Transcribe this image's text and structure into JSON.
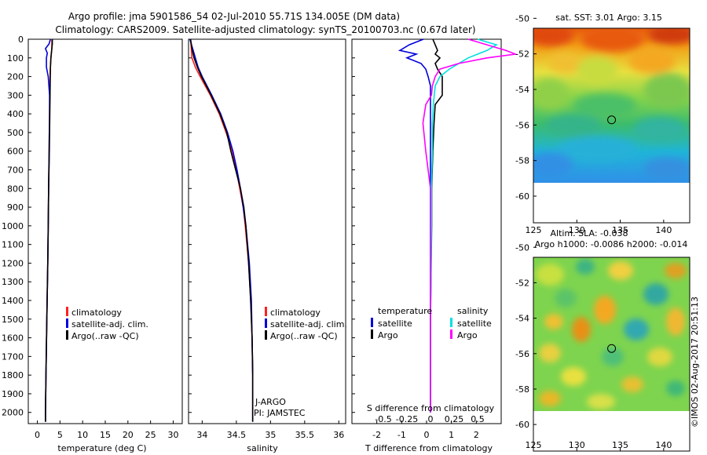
{
  "title": {
    "line1": "Argo profile: jma 5901586_54 02-Jul-2010 55.71S 134.005E (DM data)",
    "line2": "Climatology: CARS2009. Satellite-adjusted climatology: synTS_20100703.nc (0.67d later)"
  },
  "credit": "©IMOS 02-Aug-2017 20:51:13",
  "colors": {
    "climatology": "#ff2020",
    "satellite": "#0000dd",
    "argo": "#000000",
    "salinity_sat": "#00e0e0",
    "salinity_argo": "#ff00ff"
  },
  "depth_axis": {
    "ticks": [
      0,
      100,
      200,
      300,
      400,
      500,
      600,
      700,
      800,
      900,
      1000,
      1100,
      1200,
      1300,
      1400,
      1500,
      1600,
      1700,
      1800,
      1900,
      2000
    ],
    "max": 2060
  },
  "legend_profiles": {
    "climatology": "climatology",
    "satellite": "satellite-adj. clim.",
    "argo": "Argo(..raw -QC)"
  },
  "legend_diff": {
    "temperature": "temperature",
    "salinity": "salinity",
    "satellite": "satellite",
    "argo": "Argo"
  },
  "annotation": {
    "line1": "J-ARGO",
    "line2": "PI: JAMSTEC"
  },
  "chart_data": [
    {
      "type": "line",
      "name": "temperature-profile",
      "xlabel": "temperature (deg C)",
      "xlim": [
        -2,
        32
      ],
      "ylim": [
        0,
        2060
      ],
      "xticks": [
        "0",
        "5",
        "10",
        "15",
        "20",
        "25",
        "30"
      ],
      "xtick_values": [
        0,
        5,
        10,
        15,
        20,
        25,
        30
      ],
      "depth": [
        0,
        25,
        50,
        75,
        100,
        150,
        200,
        300,
        400,
        600,
        800,
        1000,
        1200,
        1500,
        1800,
        2000,
        2050
      ],
      "series": [
        {
          "name": "climatology",
          "values": [
            3.2,
            3.2,
            3.2,
            3.1,
            3.0,
            2.9,
            2.8,
            2.75,
            2.7,
            2.6,
            2.5,
            2.4,
            2.3,
            2.1,
            1.9,
            1.8,
            1.8
          ]
        },
        {
          "name": "satellite-adj. clim.",
          "values": [
            2.9,
            2.6,
            1.8,
            2.2,
            2.0,
            2.0,
            2.4,
            2.7,
            2.7,
            2.6,
            2.5,
            2.4,
            2.3,
            2.1,
            1.9,
            1.8,
            1.8
          ]
        },
        {
          "name": "Argo",
          "values": [
            3.3,
            3.3,
            3.2,
            3.1,
            3.0,
            2.9,
            2.85,
            2.8,
            2.75,
            2.65,
            2.5,
            2.4,
            2.3,
            2.1,
            1.9,
            1.8,
            1.8
          ]
        }
      ]
    },
    {
      "type": "line",
      "name": "salinity-profile",
      "xlabel": "salinity",
      "xlim": [
        33.8,
        36.1
      ],
      "ylim": [
        0,
        2060
      ],
      "xticks": [
        "34",
        "34.5",
        "35",
        "35.5",
        "36"
      ],
      "xtick_values": [
        34,
        34.5,
        35,
        35.5,
        36
      ],
      "depth": [
        0,
        50,
        100,
        150,
        200,
        300,
        400,
        500,
        600,
        700,
        800,
        900,
        1000,
        1200,
        1400,
        1600,
        1800,
        2000,
        2050
      ],
      "series": [
        {
          "name": "climatology",
          "values": [
            33.83,
            33.84,
            33.85,
            33.9,
            33.97,
            34.12,
            34.25,
            34.35,
            34.44,
            34.5,
            34.55,
            34.6,
            34.63,
            34.68,
            34.71,
            34.73,
            34.74,
            34.74,
            34.74
          ]
        },
        {
          "name": "satellite-adj. clim.",
          "values": [
            33.82,
            33.86,
            33.9,
            33.94,
            34.0,
            34.14,
            34.27,
            34.37,
            34.45,
            34.51,
            34.56,
            34.6,
            34.64,
            34.69,
            34.72,
            34.73,
            34.74,
            34.74,
            34.74
          ]
        },
        {
          "name": "Argo",
          "values": [
            33.83,
            33.85,
            33.88,
            33.93,
            33.99,
            34.13,
            34.26,
            34.36,
            34.42,
            34.49,
            34.56,
            34.61,
            34.64,
            34.68,
            34.71,
            34.73,
            34.74,
            34.74,
            34.74
          ]
        }
      ]
    },
    {
      "type": "line",
      "name": "difference-from-climatology",
      "xlabel": "T difference from climatology",
      "x2label": "S difference from climatology",
      "xlim": [
        -3,
        3
      ],
      "ylim": [
        0,
        2060
      ],
      "xticks": [
        "-2",
        "-1",
        "0",
        "1",
        "2"
      ],
      "xtick_values": [
        -2,
        -1,
        0,
        1,
        2
      ],
      "x2ticks": [
        "-0.5",
        "-0.25",
        "0",
        "0.25",
        "0.5"
      ],
      "x2tick_values": [
        -0.5,
        -0.25,
        0,
        0.25,
        0.5
      ],
      "depth": [
        0,
        30,
        60,
        80,
        100,
        130,
        160,
        200,
        250,
        300,
        350,
        450,
        600,
        800,
        1000,
        1500,
        2000
      ],
      "series": [
        {
          "name": "temperature satellite",
          "values": [
            -0.3,
            -0.9,
            -1.3,
            -0.6,
            -1.0,
            -0.4,
            -0.2,
            -0.1,
            0,
            0,
            0,
            0,
            0,
            0,
            0,
            0,
            0
          ]
        },
        {
          "name": "temperature Argo",
          "values": [
            0.1,
            0.2,
            0.3,
            0.2,
            0.4,
            0.2,
            0.3,
            0.5,
            0.5,
            0.5,
            0.2,
            0.15,
            0.1,
            0.05,
            0.05,
            0,
            0
          ]
        },
        {
          "name": "salinity satellite",
          "values": [
            0.5,
            0.7,
            0.6,
            0.5,
            0.4,
            0.3,
            0.2,
            0.1,
            0.05,
            0.04,
            0.03,
            0.02,
            0.02,
            0.01,
            0.01,
            0,
            0
          ]
        },
        {
          "name": "salinity Argo",
          "values": [
            0.4,
            0.6,
            0.8,
            0.9,
            0.6,
            0.3,
            0.1,
            0.05,
            0.02,
            0.01,
            -0.05,
            -0.08,
            -0.05,
            0,
            0,
            0,
            0
          ]
        }
      ]
    },
    {
      "type": "heatmap",
      "name": "satellite-sst-map",
      "title": "sat. SST: 3.01 Argo: 3.15",
      "xlim": [
        125,
        143
      ],
      "ylim": [
        -61.5,
        -49.5
      ],
      "xticks": [
        "125",
        "130",
        "135",
        "140"
      ],
      "xtick_values": [
        125,
        130,
        135,
        140
      ],
      "yticks": [
        "-50",
        "-52",
        "-54",
        "-56",
        "-58",
        "-60"
      ],
      "ytick_values": [
        -50,
        -52,
        -54,
        -56,
        -58,
        -60
      ],
      "marker": {
        "lon": 134.005,
        "lat": -55.71
      }
    },
    {
      "type": "heatmap",
      "name": "altimetry-sla-map",
      "title": "Altim. SLA: -0.038",
      "subtitle": "Argo h1000: -0.0086 h2000: -0.014",
      "xlim": [
        125,
        143
      ],
      "ylim": [
        -61.5,
        -49.5
      ],
      "xticks": [
        "125",
        "130",
        "135",
        "140"
      ],
      "xtick_values": [
        125,
        130,
        135,
        140
      ],
      "yticks": [
        "-50",
        "-52",
        "-54",
        "-56",
        "-58",
        "-60"
      ],
      "ytick_values": [
        -50,
        -52,
        -54,
        -56,
        -58,
        -60
      ],
      "marker": {
        "lon": 134.005,
        "lat": -55.71
      }
    }
  ]
}
